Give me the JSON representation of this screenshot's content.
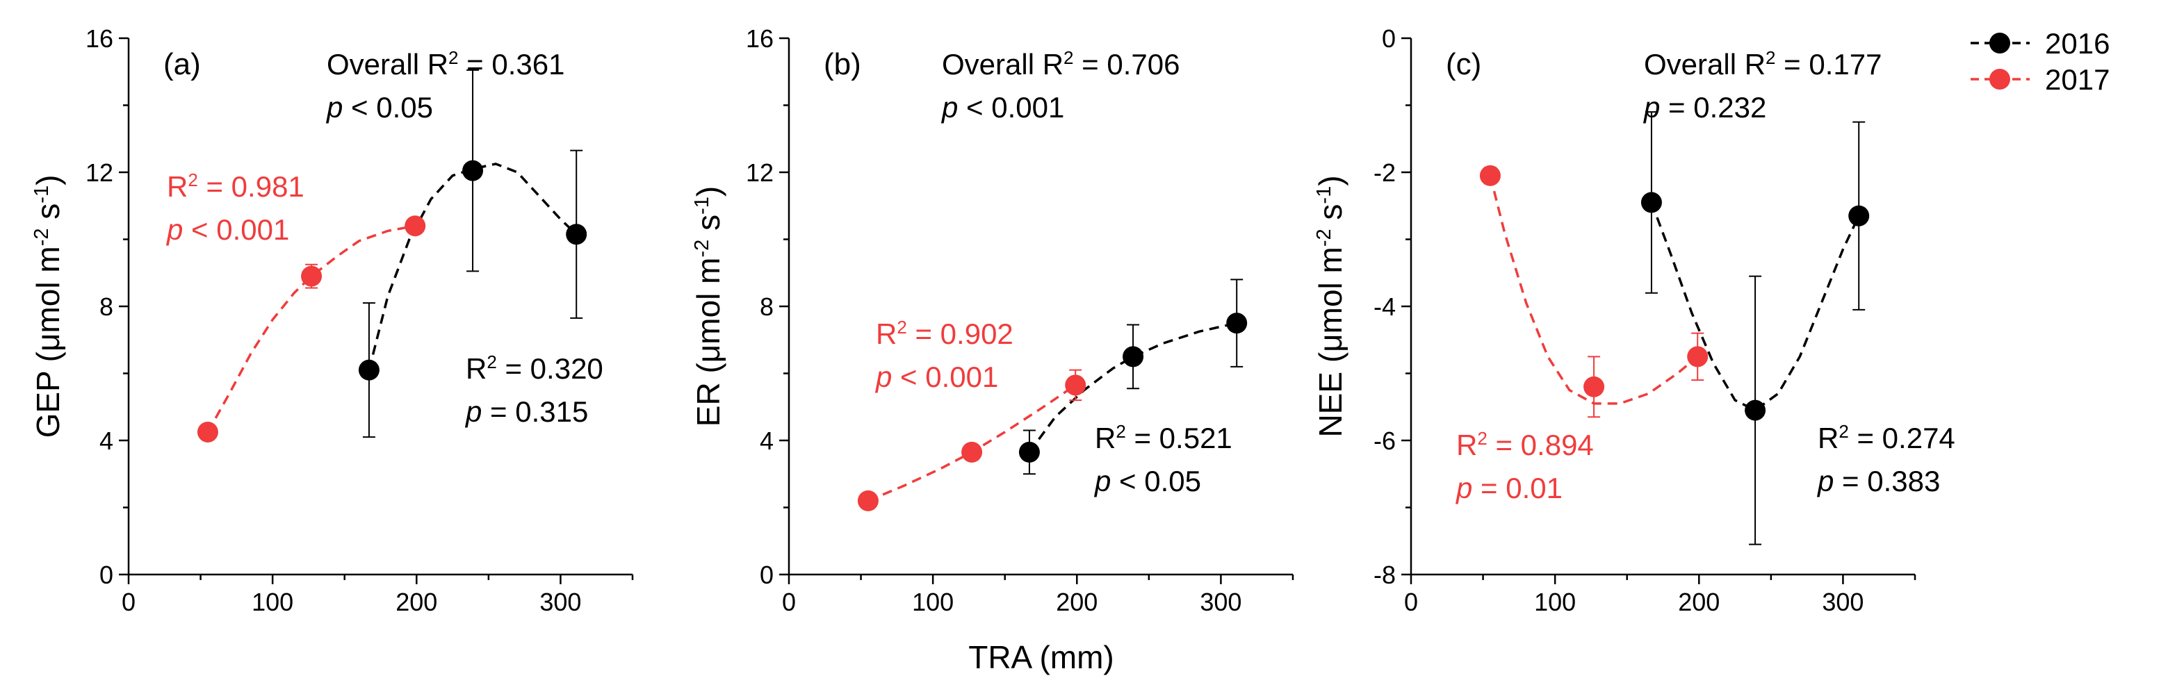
{
  "chart_data": {
    "type": "scatter",
    "shared_xlabel": "TRA (mm)",
    "xlim": [
      0,
      350
    ],
    "xticks": [
      0,
      100,
      200,
      300
    ],
    "colors": {
      "s2016": "#000000",
      "s2017": "#f03c3c"
    },
    "legend": {
      "placement": "top-right",
      "items": [
        "2016",
        "2017"
      ]
    },
    "panels": [
      {
        "id": "a",
        "label": "(a)",
        "ylabel": "GEP (μmol m⁻² s⁻¹)",
        "ylim": [
          0,
          16
        ],
        "yticks": [
          "0",
          "4",
          "8",
          "12",
          "16"
        ],
        "series": [
          {
            "name": "2016",
            "points": [
              {
                "x": 167,
                "y": 6.1,
                "err": 2.0
              },
              {
                "x": 239,
                "y": 12.05,
                "err": 3.0
              },
              {
                "x": 311,
                "y": 10.15,
                "err": 2.5
              }
            ],
            "fit": [
              [
                167,
                6.1
              ],
              [
                180,
                8.3
              ],
              [
                195,
                10.0
              ],
              [
                210,
                11.2
              ],
              [
                225,
                11.9
              ],
              [
                239,
                12.1
              ],
              [
                255,
                12.25
              ],
              [
                270,
                12.0
              ],
              [
                285,
                11.3
              ],
              [
                300,
                10.6
              ],
              [
                311,
                10.15
              ]
            ]
          },
          {
            "name": "2017",
            "points": [
              {
                "x": 55,
                "y": 4.25,
                "err": 0.12
              },
              {
                "x": 127,
                "y": 8.9,
                "err": 0.35
              },
              {
                "x": 199,
                "y": 10.4,
                "err": 0.15
              }
            ],
            "fit": [
              [
                55,
                4.25
              ],
              [
                70,
                5.4
              ],
              [
                85,
                6.6
              ],
              [
                100,
                7.6
              ],
              [
                115,
                8.4
              ],
              [
                127,
                8.9
              ],
              [
                145,
                9.5
              ],
              [
                160,
                9.95
              ],
              [
                180,
                10.25
              ],
              [
                199,
                10.4
              ]
            ]
          }
        ],
        "annotations": {
          "overall_r2": "Overall R² = 0.361",
          "overall_p": "p < 0.05",
          "r2_2016": "R² = 0.320",
          "p_2016": "p = 0.315",
          "r2_2017": "R² = 0.981",
          "p_2017": "p < 0.001"
        }
      },
      {
        "id": "b",
        "label": "(b)",
        "ylabel": "ER (μmol m⁻² s⁻¹)",
        "ylim": [
          0,
          16
        ],
        "yticks": [
          "0",
          "4",
          "8",
          "12",
          "16"
        ],
        "series": [
          {
            "name": "2016",
            "points": [
              {
                "x": 167,
                "y": 3.65,
                "err": 0.65
              },
              {
                "x": 239,
                "y": 6.5,
                "err": 0.95
              },
              {
                "x": 311,
                "y": 7.5,
                "err": 1.3
              }
            ],
            "fit": [
              [
                167,
                3.65
              ],
              [
                185,
                4.7
              ],
              [
                205,
                5.5
              ],
              [
                225,
                6.15
              ],
              [
                239,
                6.5
              ],
              [
                260,
                6.9
              ],
              [
                285,
                7.25
              ],
              [
                311,
                7.5
              ]
            ]
          },
          {
            "name": "2017",
            "points": [
              {
                "x": 55,
                "y": 2.2,
                "err": 0.08
              },
              {
                "x": 127,
                "y": 3.65,
                "err": 0.1
              },
              {
                "x": 199,
                "y": 5.65,
                "err": 0.45
              }
            ],
            "fit": [
              [
                55,
                2.2
              ],
              [
                80,
                2.65
              ],
              [
                105,
                3.15
              ],
              [
                127,
                3.65
              ],
              [
                150,
                4.25
              ],
              [
                175,
                4.95
              ],
              [
                199,
                5.65
              ]
            ]
          }
        ],
        "annotations": {
          "overall_r2": "Overall R² = 0.706",
          "overall_p": "p < 0.001",
          "r2_2016": "R² = 0.521",
          "p_2016": "p < 0.05",
          "r2_2017": "R² = 0.902",
          "p_2017": "p < 0.001"
        }
      },
      {
        "id": "c",
        "label": "(c)",
        "ylabel": "NEE (μmol m⁻² s⁻¹)",
        "ylim": [
          -8,
          0
        ],
        "yticks": [
          "-8",
          "-6",
          "-4",
          "-2",
          "0"
        ],
        "series": [
          {
            "name": "2016",
            "points": [
              {
                "x": 167,
                "y": -2.45,
                "err": 1.35
              },
              {
                "x": 239,
                "y": -5.55,
                "err": 2.0
              },
              {
                "x": 311,
                "y": -2.65,
                "err": 1.4
              }
            ],
            "fit": [
              [
                167,
                -2.45
              ],
              [
                180,
                -3.2
              ],
              [
                195,
                -4.1
              ],
              [
                210,
                -4.85
              ],
              [
                225,
                -5.4
              ],
              [
                239,
                -5.55
              ],
              [
                255,
                -5.3
              ],
              [
                270,
                -4.75
              ],
              [
                285,
                -3.95
              ],
              [
                300,
                -3.15
              ],
              [
                311,
                -2.65
              ]
            ]
          },
          {
            "name": "2017",
            "points": [
              {
                "x": 55,
                "y": -2.05,
                "err": 0.12
              },
              {
                "x": 127,
                "y": -5.2,
                "err": 0.45
              },
              {
                "x": 199,
                "y": -4.75,
                "err": 0.35
              }
            ],
            "fit": [
              [
                55,
                -2.05
              ],
              [
                65,
                -2.9
              ],
              [
                80,
                -3.95
              ],
              [
                95,
                -4.75
              ],
              [
                110,
                -5.25
              ],
              [
                127,
                -5.45
              ],
              [
                145,
                -5.45
              ],
              [
                165,
                -5.3
              ],
              [
                185,
                -5.0
              ],
              [
                199,
                -4.75
              ]
            ]
          }
        ],
        "annotations": {
          "overall_r2": "Overall R² = 0.177",
          "overall_p": "p = 0.232",
          "r2_2016": "R² = 0.274",
          "p_2016": "p = 0.383",
          "r2_2017": "R² = 0.894",
          "p_2017": "p = 0.01"
        }
      }
    ]
  }
}
